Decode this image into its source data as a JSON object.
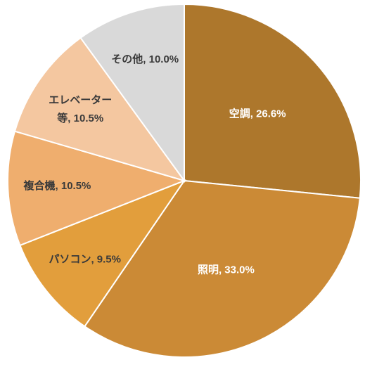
{
  "chart_data": {
    "type": "pie",
    "values": [
      26.6,
      33.0,
      9.5,
      10.5,
      10.5,
      10.0
    ],
    "value_labels": [
      "空調, 26.6%",
      "照明, 33.0%",
      "パソコン, 9.5%",
      "複合機, 10.5%",
      "エレベーター等, 10.5%",
      "その他, 10.0%"
    ],
    "colors": [
      "#ad772c",
      "#cb8a36",
      "#e29e3c",
      "#efae6e",
      "#f4c7a0",
      "#d9d9d9"
    ],
    "label_colors": [
      "#ffffff",
      "#ffffff",
      "#3a3a3a",
      "#3a3a3a",
      "#3a3a3a",
      "#3a3a3a"
    ]
  }
}
